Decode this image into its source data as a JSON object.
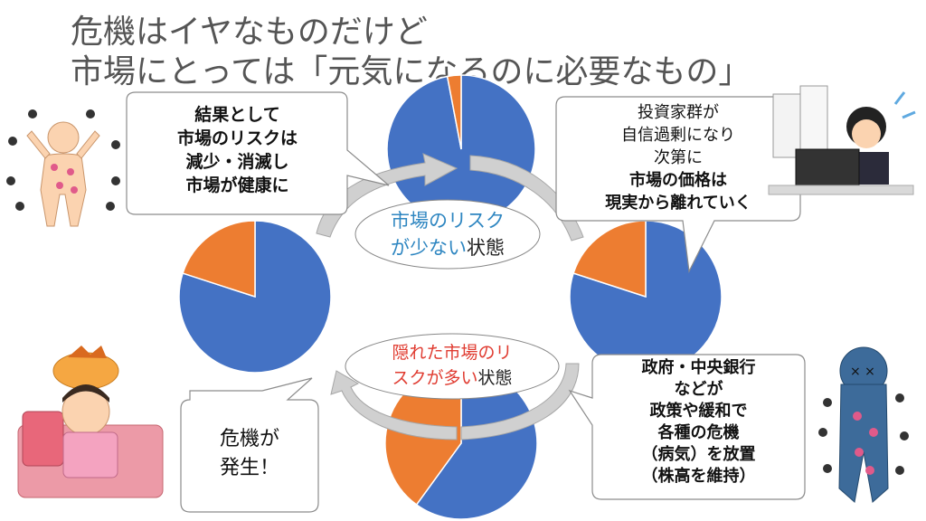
{
  "title": {
    "line1": "危機はイヤなものだけど",
    "line2": "市場にとっては「元気になるのに必要なもの」"
  },
  "cycle": {
    "low_risk_state": {
      "highlight": "市場のリスク",
      "highlight2": "が少ない",
      "rest": "状態",
      "color": "#2e86c1"
    },
    "hidden_risk_state": {
      "highlight": "隠れた市場のリ",
      "highlight2": "スクが多い",
      "rest": "状態",
      "color": "#e03c31"
    }
  },
  "bubbles": {
    "top_left": {
      "lines": [
        "結果として",
        "市場のリスクは",
        "減少・消滅し",
        "市場が健康に"
      ]
    },
    "top_right": {
      "lines_normal": [
        "投資家群が",
        "自信過剰になり",
        "次第に"
      ],
      "lines_bold": [
        "市場の価格は",
        "現実から離れていく"
      ]
    },
    "bottom_right": {
      "lines": [
        "政府・中央銀行",
        "などが",
        "政策や緩和で",
        "各種の危機",
        "（病気）を放置",
        "（株高を維持）"
      ]
    },
    "bottom_left": {
      "lines": [
        "危機が",
        "発生！"
      ]
    }
  },
  "colors": {
    "pie_blue": "#4472c4",
    "pie_orange": "#ed7d31",
    "arrow": "#b8b8b8"
  },
  "chart_data": [
    {
      "type": "pie",
      "position": "top",
      "slices": [
        {
          "value": 97,
          "color": "#4472c4"
        },
        {
          "value": 3,
          "color": "#ed7d31"
        }
      ]
    },
    {
      "type": "pie",
      "position": "left",
      "slices": [
        {
          "value": 80,
          "color": "#4472c4"
        },
        {
          "value": 20,
          "color": "#ed7d31"
        }
      ]
    },
    {
      "type": "pie",
      "position": "right",
      "slices": [
        {
          "value": 80,
          "color": "#4472c4"
        },
        {
          "value": 20,
          "color": "#ed7d31"
        }
      ]
    },
    {
      "type": "pie",
      "position": "bottom",
      "slices": [
        {
          "value": 60,
          "color": "#4472c4"
        },
        {
          "value": 40,
          "color": "#ed7d31"
        }
      ]
    }
  ]
}
